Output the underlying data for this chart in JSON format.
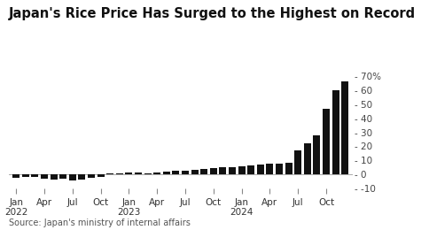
{
  "title": "Japan's Rice Price Has Surged to the Highest on Record",
  "source": "Source: Japan's ministry of internal affairs",
  "bar_color": "#111111",
  "background_color": "#ffffff",
  "ylim": [
    -10,
    75
  ],
  "yticks": [
    -10,
    0,
    10,
    20,
    30,
    40,
    50,
    60,
    70
  ],
  "ytick_labels": [
    "-10",
    "0",
    "10",
    "20",
    "30",
    "40",
    "50",
    "60",
    "70%"
  ],
  "values": [
    -2.5,
    -2.0,
    -1.5,
    -3.0,
    -3.5,
    -3.2,
    -4.0,
    -3.8,
    -2.5,
    -1.5,
    0.5,
    1.0,
    1.5,
    1.2,
    0.8,
    1.5,
    2.0,
    2.5,
    3.0,
    3.5,
    4.0,
    4.5,
    5.0,
    5.5,
    6.0,
    6.5,
    7.0,
    7.5,
    8.0,
    8.5,
    17.0,
    22.0,
    28.0,
    47.0,
    60.0,
    66.0
  ],
  "x_tick_positions": [
    0,
    3,
    6,
    9,
    12,
    15,
    18,
    21,
    24,
    27,
    30,
    33
  ],
  "x_tick_labels": [
    "Jan\n2022",
    "Apr",
    "Jul",
    "Oct",
    "Jan\n2023",
    "Apr",
    "Jul",
    "Oct",
    "Jan\n2024",
    "Apr",
    "Jul",
    "Oct"
  ],
  "title_fontsize": 10.5,
  "source_fontsize": 7,
  "tick_fontsize": 7.5
}
